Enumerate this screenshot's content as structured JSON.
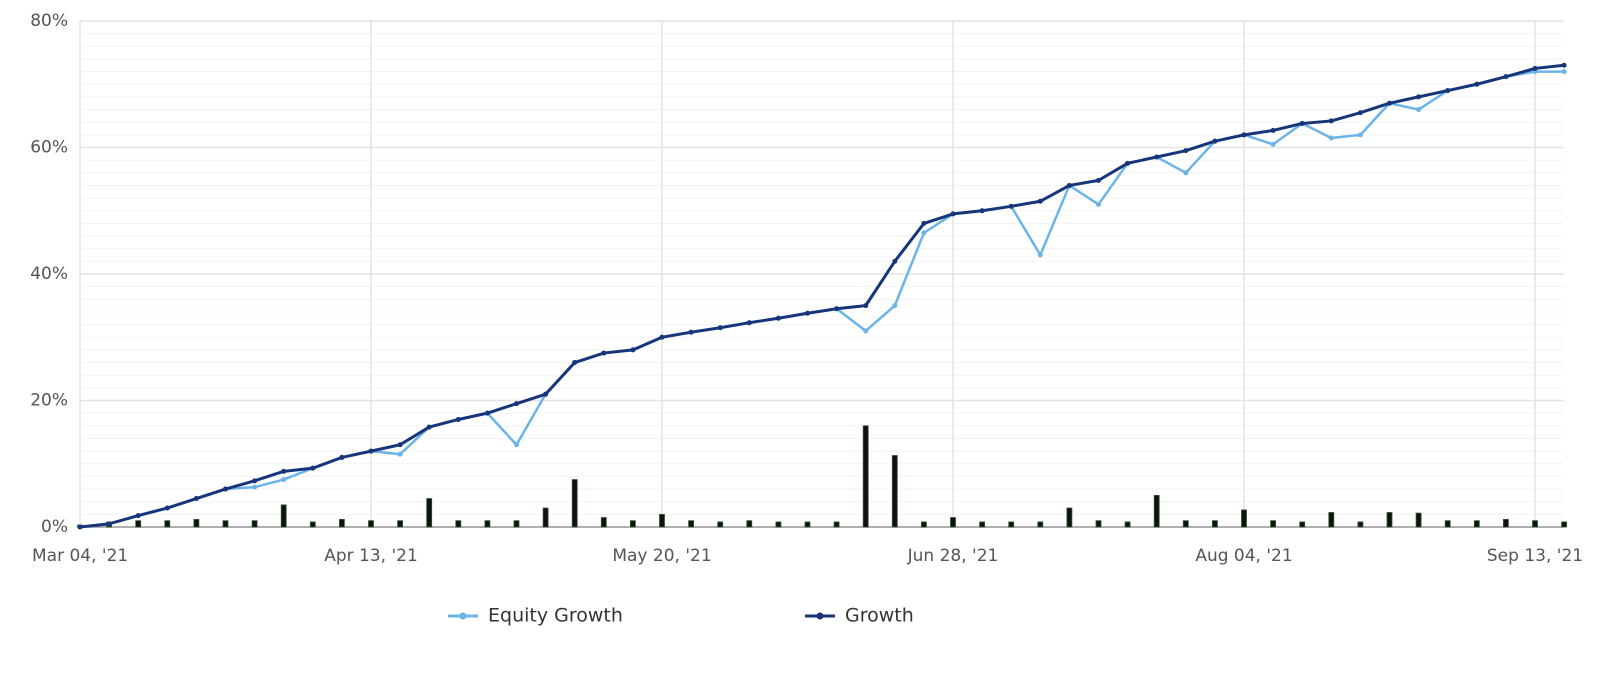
{
  "chart_data": {
    "type": "line",
    "categories": [
      "Mar 04, '21",
      null,
      null,
      null,
      null,
      null,
      null,
      null,
      null,
      null,
      "Apr 13, '21",
      null,
      null,
      null,
      null,
      null,
      null,
      null,
      null,
      null,
      "May 20, '21",
      null,
      null,
      null,
      null,
      null,
      null,
      null,
      null,
      null,
      "Jun 28, '21",
      null,
      null,
      null,
      null,
      null,
      null,
      null,
      null,
      null,
      "Aug 04, '21",
      null,
      null,
      null,
      null,
      null,
      null,
      null,
      null,
      null,
      "Sep 13, '21",
      null
    ],
    "series": [
      {
        "name": "Equity Growth",
        "color": "#6cb4e8",
        "values": [
          0,
          0.5,
          1.8,
          3,
          4.5,
          6,
          6.3,
          7.5,
          9.3,
          11,
          12,
          11.5,
          15.8,
          17,
          18,
          13,
          21,
          26,
          27.5,
          28,
          30,
          30.8,
          31.5,
          32.3,
          33,
          33.8,
          34.5,
          31,
          35,
          46.5,
          49.5,
          50,
          50.7,
          43,
          54,
          51,
          57.5,
          58.5,
          56,
          61,
          62,
          60.5,
          63.8,
          61.5,
          62,
          67,
          66,
          69,
          70,
          71.2,
          72,
          72
        ]
      },
      {
        "name": "Growth",
        "color": "#17357a",
        "values": [
          0,
          0.5,
          1.8,
          3,
          4.5,
          6,
          7.3,
          8.8,
          9.3,
          11,
          12,
          13,
          15.8,
          17,
          18,
          19.5,
          21,
          26,
          27.5,
          28,
          30,
          30.8,
          31.5,
          32.3,
          33,
          33.8,
          34.5,
          35,
          42,
          48,
          49.5,
          50,
          50.7,
          51.5,
          54,
          54.8,
          57.5,
          58.5,
          59.5,
          61,
          62,
          62.7,
          63.8,
          64.2,
          65.5,
          67,
          68,
          69,
          70,
          71.2,
          72.5,
          73
        ]
      }
    ],
    "bars": {
      "color": "#111111",
      "values": [
        0.3,
        0.8,
        1,
        1,
        1.2,
        1,
        1,
        3.5,
        0.8,
        1.2,
        1,
        1,
        4.5,
        1,
        1,
        1,
        3,
        7.5,
        1.5,
        1,
        2,
        1,
        0.8,
        1,
        0.8,
        0.8,
        0.8,
        16,
        11.3,
        0.8,
        1.5,
        0.8,
        0.8,
        0.8,
        3,
        1,
        0.8,
        5,
        1,
        1,
        2.7,
        1,
        0.8,
        2.3,
        0.8,
        2.3,
        2.2,
        1,
        1,
        1.2,
        1,
        0.8
      ]
    },
    "ylim": [
      0,
      80
    ],
    "yticks": [
      {
        "value": 0,
        "label": "0%"
      },
      {
        "value": 20,
        "label": "20%"
      },
      {
        "value": 40,
        "label": "40%"
      },
      {
        "value": 60,
        "label": "60%"
      },
      {
        "value": 80,
        "label": "80%"
      }
    ],
    "grid": true
  }
}
